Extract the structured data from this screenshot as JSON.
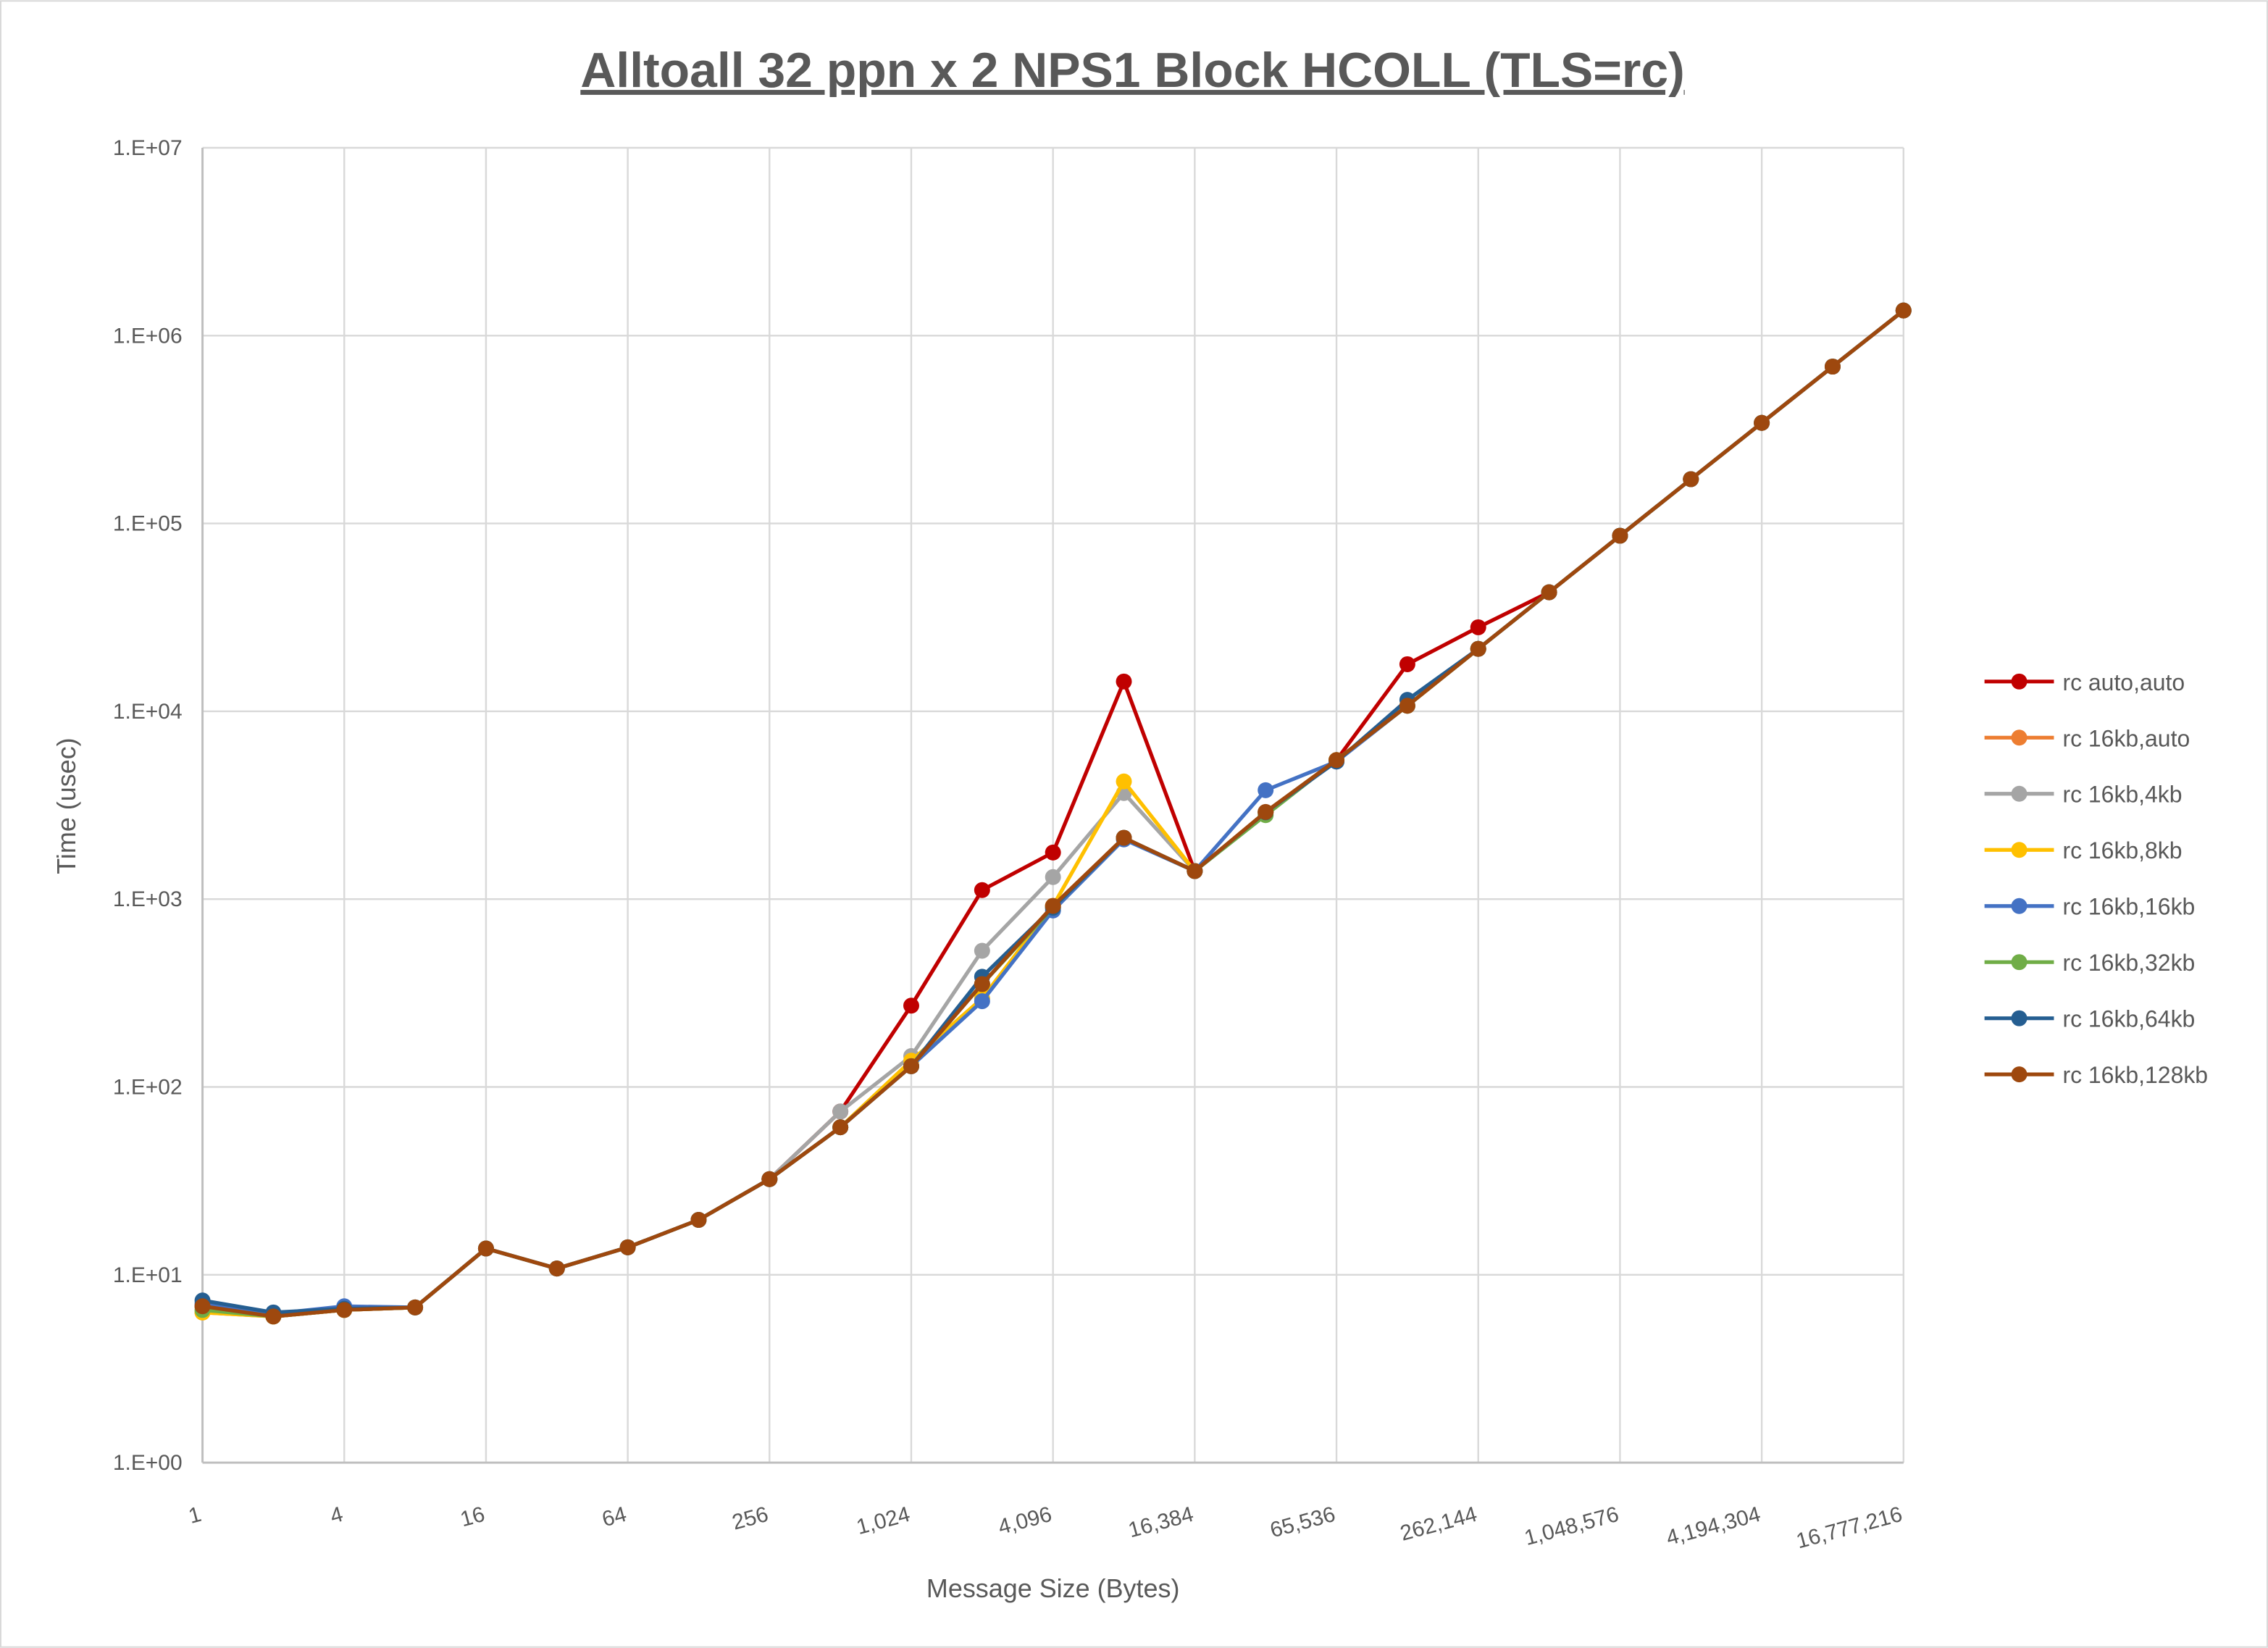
{
  "chart_data": {
    "type": "line",
    "title": "Alltoall 32 ppn x 2 NPS1 Block HCOLL (TLS=rc)",
    "xlabel": "Message Size (Bytes)",
    "ylabel": "Time (usec)",
    "x_scale": "log2",
    "y_scale": "log10",
    "xlim": [
      1,
      16777216
    ],
    "ylim": [
      1,
      10000000
    ],
    "grid": true,
    "legend_position": "right",
    "x_tick_labels": [
      "1",
      "4",
      "16",
      "64",
      "256",
      "1,024",
      "4,096",
      "16,384",
      "65,536",
      "262,144",
      "1,048,576",
      "4,194,304",
      "16,777,216"
    ],
    "y_tick_labels": [
      "1.E+00",
      "1.E+01",
      "1.E+02",
      "1.E+03",
      "1.E+04",
      "1.E+05",
      "1.E+06",
      "1.E+07"
    ],
    "x": [
      1,
      2,
      4,
      8,
      16,
      32,
      64,
      128,
      256,
      512,
      1024,
      2048,
      4096,
      8192,
      16384,
      32768,
      65536,
      131072,
      262144,
      524288,
      1048576,
      2097152,
      4194304,
      8388608,
      16777216
    ],
    "series": [
      {
        "name": "rc auto,auto",
        "color": "#c00000",
        "values": [
          6.8,
          6.0,
          6.5,
          6.7,
          13.8,
          10.8,
          14.0,
          19.6,
          32.3,
          74,
          271,
          1117,
          1770,
          14400,
          1410,
          2900,
          5500,
          17800,
          28000,
          43000,
          86000,
          172000,
          343000,
          684000,
          1360000
        ]
      },
      {
        "name": "rc 16kb,auto",
        "color": "#ed7d31",
        "values": [
          6.3,
          6.0,
          6.5,
          6.7,
          13.8,
          10.8,
          14.0,
          19.6,
          32.3,
          61,
          129,
          353,
          920,
          2120,
          1410,
          2900,
          5500,
          10700,
          21500,
          43000,
          86000,
          172000,
          343000,
          684000,
          1360000
        ]
      },
      {
        "name": "rc 16kb,4kb",
        "color": "#a5a5a5",
        "values": [
          6.8,
          6.0,
          6.7,
          6.7,
          13.8,
          10.8,
          14.0,
          19.6,
          32.3,
          74,
          146,
          531,
          1310,
          3670,
          1410,
          2900,
          5500,
          10700,
          21500,
          43000,
          86000,
          172000,
          343000,
          684000,
          1360000
        ]
      },
      {
        "name": "rc 16kb,8kb",
        "color": "#ffc000",
        "values": [
          6.3,
          6.0,
          6.5,
          6.7,
          13.8,
          10.8,
          14.0,
          19.6,
          32.3,
          61,
          138,
          296,
          920,
          4230,
          1410,
          2900,
          5500,
          10700,
          21500,
          43000,
          86000,
          172000,
          343000,
          684000,
          1360000
        ]
      },
      {
        "name": "rc 16kb,16kb",
        "color": "#4472c4",
        "values": [
          7.0,
          6.2,
          6.8,
          6.7,
          13.8,
          10.8,
          14.0,
          19.6,
          32.3,
          61,
          129,
          286,
          870,
          2080,
          1410,
          3800,
          5400,
          10700,
          21500,
          43000,
          86000,
          172000,
          343000,
          684000,
          1360000
        ]
      },
      {
        "name": "rc 16kb,32kb",
        "color": "#70ad47",
        "values": [
          6.5,
          6.0,
          6.5,
          6.7,
          13.8,
          10.8,
          14.0,
          19.6,
          32.3,
          61,
          129,
          353,
          900,
          2120,
          1410,
          2800,
          5500,
          10700,
          21500,
          43000,
          86000,
          172000,
          343000,
          684000,
          1360000
        ]
      },
      {
        "name": "rc 16kb,64kb",
        "color": "#255e91",
        "values": [
          7.3,
          6.3,
          6.6,
          6.7,
          13.8,
          10.8,
          14.0,
          19.6,
          32.3,
          61,
          129,
          386,
          900,
          2120,
          1410,
          2900,
          5400,
          11500,
          21500,
          43000,
          86000,
          172000,
          343000,
          684000,
          1360000
        ]
      },
      {
        "name": "rc 16kb,128kb",
        "color": "#9e480e",
        "values": [
          6.8,
          6.0,
          6.5,
          6.7,
          13.8,
          10.8,
          14.0,
          19.6,
          32.3,
          61,
          129,
          353,
          920,
          2120,
          1410,
          2910,
          5500,
          10700,
          21500,
          43000,
          86000,
          172000,
          343000,
          684000,
          1360000
        ]
      }
    ]
  }
}
